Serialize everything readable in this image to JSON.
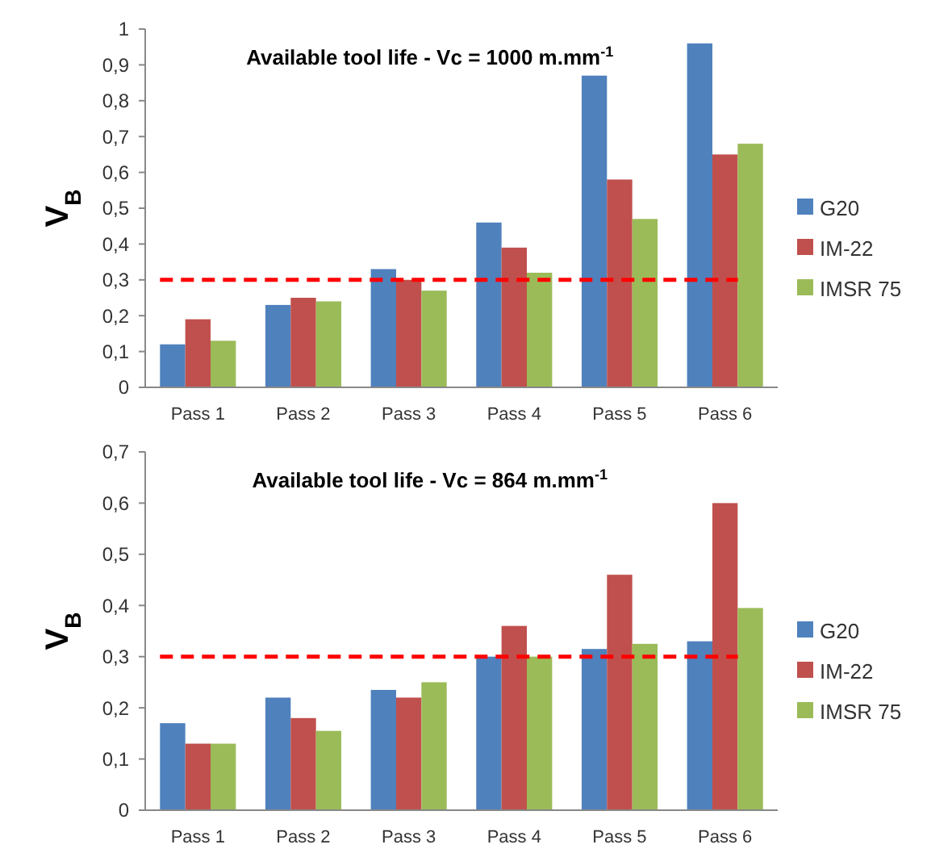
{
  "chart_data": [
    {
      "type": "bar",
      "title": "Available tool life  - Vc = 1000 m.mm$^{-1}$",
      "ylabel": "V$_{B}$",
      "categories": [
        "Pass 1",
        "Pass 2",
        "Pass 3",
        "Pass 4",
        "Pass 5",
        "Pass 6"
      ],
      "series": [
        {
          "name": "G20",
          "color": "#4f81bd",
          "values": [
            0.12,
            0.23,
            0.33,
            0.46,
            0.87,
            0.96
          ]
        },
        {
          "name": "IM-22",
          "color": "#c0504d",
          "values": [
            0.19,
            0.25,
            0.3,
            0.39,
            0.58,
            0.65
          ]
        },
        {
          "name": "IMSR 75",
          "color": "#9bbb59",
          "values": [
            0.13,
            0.24,
            0.27,
            0.32,
            0.47,
            0.68
          ]
        }
      ],
      "ylim": [
        0,
        1
      ],
      "yticks": [
        {
          "value": 0,
          "label": "0"
        },
        {
          "value": 0.1,
          "label": "0,1"
        },
        {
          "value": 0.2,
          "label": "0,2"
        },
        {
          "value": 0.3,
          "label": "0,3"
        },
        {
          "value": 0.4,
          "label": "0,4"
        },
        {
          "value": 0.5,
          "label": "0,5"
        },
        {
          "value": 0.6,
          "label": "0,6"
        },
        {
          "value": 0.7,
          "label": "0,7"
        },
        {
          "value": 0.8,
          "label": "0,8"
        },
        {
          "value": 0.9,
          "label": "0,9"
        },
        {
          "value": 1,
          "label": "1"
        }
      ],
      "ref_lines": [
        {
          "axis": "y",
          "value": 0.3,
          "color": "#ff0000",
          "line_style": "dashed"
        }
      ],
      "grid": false,
      "legend": "right"
    },
    {
      "type": "bar",
      "title": "Available tool life  - Vc = 864 m.mm$^{-1}$",
      "ylabel": "V$_{B}$",
      "categories": [
        "Pass 1",
        "Pass 2",
        "Pass 3",
        "Pass 4",
        "Pass 5",
        "Pass 6"
      ],
      "series": [
        {
          "name": "G20",
          "color": "#4f81bd",
          "values": [
            0.17,
            0.22,
            0.235,
            0.3,
            0.315,
            0.33
          ]
        },
        {
          "name": "IM-22",
          "color": "#c0504d",
          "values": [
            0.13,
            0.18,
            0.22,
            0.36,
            0.46,
            0.6
          ]
        },
        {
          "name": "IMSR 75",
          "color": "#9bbb59",
          "values": [
            0.13,
            0.155,
            0.25,
            0.3,
            0.325,
            0.395
          ]
        }
      ],
      "ylim": [
        0,
        0.7
      ],
      "yticks": [
        {
          "value": 0,
          "label": "0"
        },
        {
          "value": 0.1,
          "label": "0,1"
        },
        {
          "value": 0.2,
          "label": "0,2"
        },
        {
          "value": 0.3,
          "label": "0,3"
        },
        {
          "value": 0.4,
          "label": "0,4"
        },
        {
          "value": 0.5,
          "label": "0,5"
        },
        {
          "value": 0.6,
          "label": "0,6"
        },
        {
          "value": 0.7,
          "label": "0,7"
        }
      ],
      "ref_lines": [
        {
          "axis": "y",
          "value": 0.3,
          "color": "#ff0000",
          "line_style": "dashed"
        }
      ],
      "grid": false,
      "legend": "right"
    }
  ]
}
